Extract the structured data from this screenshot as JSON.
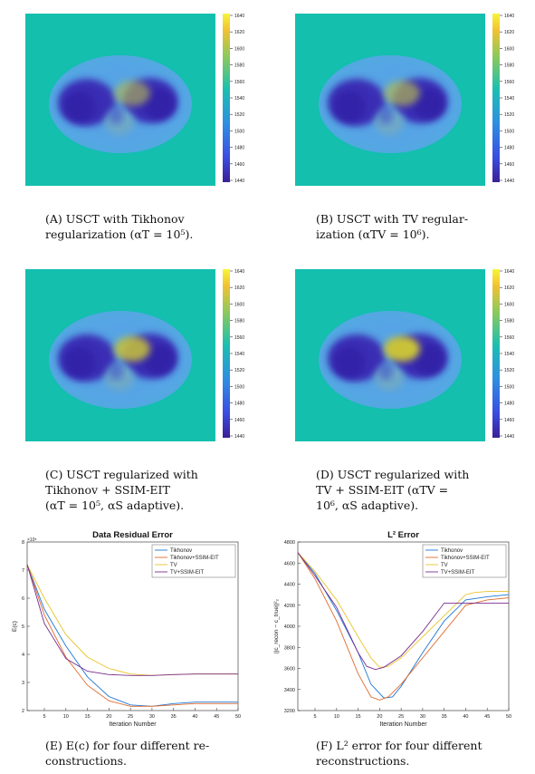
{
  "colors": {
    "background": "#14bfae",
    "body": "#4fa9e0",
    "lung": "#3a2fb5",
    "heart": "#c9c238"
  },
  "colorbar_ticks": [
    "1640",
    "1620",
    "1600",
    "1580",
    "1560",
    "1540",
    "1520",
    "1500",
    "1480",
    "1460",
    "1440"
  ],
  "captions": {
    "A": {
      "l1": "(A)  USCT  with  Tikhonov",
      "l2": "regularization (αT = 10⁵)."
    },
    "B": {
      "l1": "(B)  USCT with TV regular-",
      "l2": "ization (αTV = 10⁶)."
    },
    "C": {
      "l1": "(C)  USCT  regularized  with",
      "l2": "Tikhonov       +       SSIM-EIT",
      "l3": "(αT = 10⁵, αS adaptive)."
    },
    "D": {
      "l1": "(D)  USCT  regularized  with",
      "l2": "TV  +  SSIM-EIT  (αTV   =",
      "l3": "10⁶, αS adaptive)."
    },
    "E": {
      "l1": "(E)  E(c) for four different re-",
      "l2": "constructions."
    },
    "F": {
      "l1": "(F)  L² error for four different",
      "l2": "reconstructions."
    }
  },
  "chart_data": [
    {
      "type": "line",
      "title": "Data Residual Error",
      "xlabel": "Iteration Number",
      "ylabel": "E(c)",
      "exponent_label": "×10⁵",
      "xlim": [
        1,
        50
      ],
      "ylim": [
        2,
        8
      ],
      "xticks": [
        "5",
        "10",
        "15",
        "20",
        "25",
        "30",
        "35",
        "40",
        "45",
        "50"
      ],
      "yticks": [
        "2",
        "3",
        "4",
        "5",
        "6",
        "7",
        "8"
      ],
      "legend_position": "top-right",
      "series": [
        {
          "name": "Tikhonov",
          "color": "#1f77d4",
          "x": [
            1,
            5,
            10,
            15,
            20,
            25,
            30,
            35,
            40,
            45,
            50
          ],
          "y": [
            7.2,
            5.6,
            4.3,
            3.2,
            2.5,
            2.2,
            2.15,
            2.25,
            2.3,
            2.3,
            2.3
          ]
        },
        {
          "name": "Tikhonov+SSIM-EIT",
          "color": "#e06a2b",
          "x": [
            1,
            5,
            10,
            15,
            20,
            25,
            30,
            35,
            40,
            45,
            50
          ],
          "y": [
            7.2,
            5.4,
            3.9,
            2.9,
            2.35,
            2.15,
            2.15,
            2.2,
            2.25,
            2.25,
            2.25
          ]
        },
        {
          "name": "TV",
          "color": "#e8c32a",
          "x": [
            1,
            5,
            10,
            15,
            20,
            25,
            30,
            35,
            40,
            45,
            50
          ],
          "y": [
            7.2,
            6.0,
            4.7,
            3.9,
            3.5,
            3.3,
            3.25,
            3.28,
            3.3,
            3.3,
            3.3
          ]
        },
        {
          "name": "TV+SSIM-EIT",
          "color": "#7a2e90",
          "x": [
            1,
            5,
            10,
            15,
            20,
            25,
            30,
            35,
            40,
            45,
            50
          ],
          "y": [
            7.2,
            5.1,
            3.85,
            3.4,
            3.28,
            3.25,
            3.25,
            3.28,
            3.3,
            3.3,
            3.3
          ]
        }
      ]
    },
    {
      "type": "line",
      "title": "L² Error",
      "xlabel": "Iteration Number",
      "ylabel": "||c_recon − c_true||²₂",
      "xlim": [
        1,
        50
      ],
      "ylim": [
        3200,
        4800
      ],
      "xticks": [
        "5",
        "10",
        "15",
        "20",
        "25",
        "30",
        "35",
        "40",
        "45",
        "50"
      ],
      "yticks": [
        "3200",
        "3400",
        "3600",
        "3800",
        "4000",
        "4200",
        "4400",
        "4600",
        "4800"
      ],
      "legend_position": "top-right",
      "series": [
        {
          "name": "Tikhonov",
          "color": "#1f77d4",
          "x": [
            1,
            5,
            10,
            15,
            18,
            21,
            23,
            25,
            30,
            35,
            40,
            45,
            50
          ],
          "y": [
            4700,
            4500,
            4150,
            3750,
            3450,
            3320,
            3330,
            3430,
            3750,
            4050,
            4250,
            4280,
            4300
          ]
        },
        {
          "name": "Tikhonov+SSIM-EIT",
          "color": "#e06a2b",
          "x": [
            1,
            5,
            10,
            15,
            18,
            20,
            22,
            25,
            30,
            35,
            40,
            45,
            50
          ],
          "y": [
            4700,
            4450,
            4050,
            3550,
            3330,
            3300,
            3330,
            3450,
            3700,
            3950,
            4200,
            4250,
            4270
          ]
        },
        {
          "name": "TV",
          "color": "#e8c32a",
          "x": [
            1,
            5,
            10,
            15,
            18,
            20,
            22,
            25,
            30,
            35,
            40,
            42,
            45,
            50
          ],
          "y": [
            4700,
            4520,
            4250,
            3900,
            3700,
            3610,
            3620,
            3700,
            3900,
            4100,
            4300,
            4320,
            4330,
            4330
          ]
        },
        {
          "name": "TV+SSIM-EIT",
          "color": "#7a2e90",
          "x": [
            1,
            5,
            10,
            15,
            17,
            19,
            21,
            25,
            30,
            35,
            40,
            45,
            50
          ],
          "y": [
            4700,
            4480,
            4180,
            3750,
            3620,
            3590,
            3610,
            3720,
            3950,
            4220,
            4220,
            4220,
            4220
          ]
        }
      ]
    }
  ]
}
